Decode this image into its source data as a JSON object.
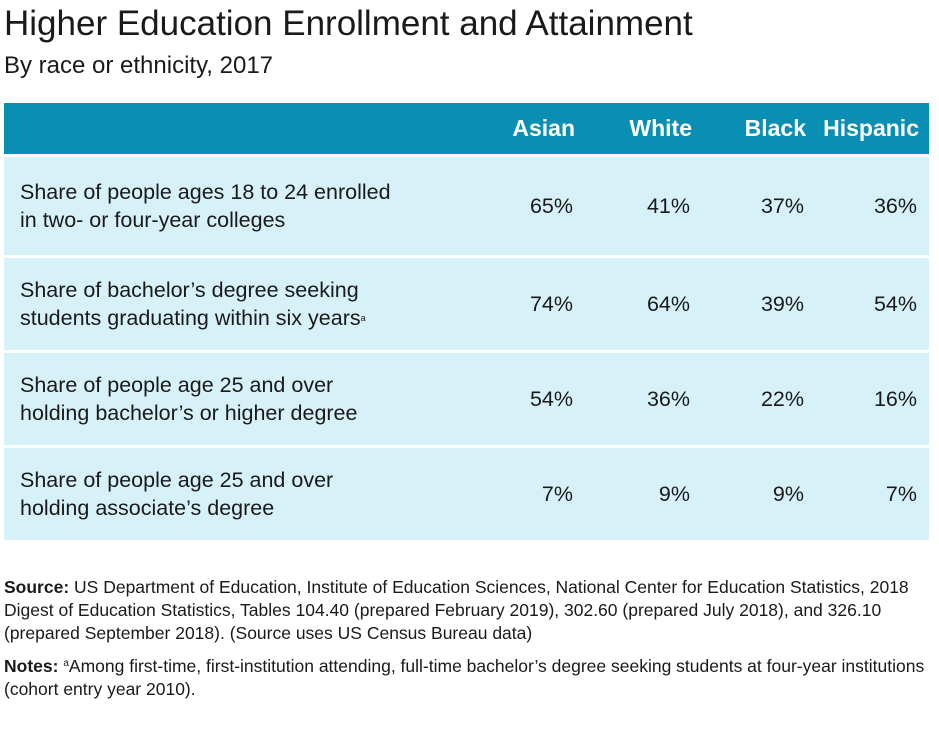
{
  "title": "Higher Education Enrollment and Attainment",
  "subtitle": "By race or ethnicity, 2017",
  "chart_data": {
    "type": "table",
    "columns": [
      "Asian",
      "White",
      "Black",
      "Hispanic"
    ],
    "rows": [
      {
        "label": "Share of people ages 18 to 24 enrolled in two- or four-year colleges",
        "line1": "Share of people ages 18 to 24 enrolled",
        "line2": "in two- or four-year colleges",
        "sup": "",
        "values": [
          "65%",
          "41%",
          "37%",
          "36%"
        ]
      },
      {
        "label": "Share of bachelor’s degree seeking students graduating within six years",
        "line1": "Share of bachelor’s degree seeking",
        "line2": "students graduating within six years",
        "sup": "a",
        "values": [
          "74%",
          "64%",
          "39%",
          "54%"
        ]
      },
      {
        "label": "Share of people age 25 and over holding bachelor’s or higher degree",
        "line1": "Share of people age 25 and over",
        "line2": "holding bachelor’s or higher degree",
        "sup": "",
        "values": [
          "54%",
          "36%",
          "22%",
          "16%"
        ]
      },
      {
        "label": "Share of people age 25 and over holding associate’s degree",
        "line1": "Share of people age 25 and over",
        "line2": "holding associate’s degree",
        "sup": "",
        "values": [
          "7%",
          "9%",
          "9%",
          "7%"
        ]
      }
    ]
  },
  "footer": {
    "source_label": "Source:",
    "source_text": "US Department of Education, Institute of Education Sciences, National Center for Education Statistics, 2018 Digest of Education Statistics, Tables 104.40 (prepared February 2019), 302.60 (prepared July 2018), and 326.10 (prepared September 2018). (Source uses US Census Bureau data)",
    "notes_label": "Notes:",
    "notes_ref": "a",
    "notes_text": "Among first-time, first-institution attending, full-time bachelor’s degree seeking students at four-year institutions (cohort entry year 2010)."
  },
  "colors": {
    "header_bg": "#0a8fb4",
    "row_bg": "#d6f1f8",
    "text": "#1a1a1a"
  }
}
